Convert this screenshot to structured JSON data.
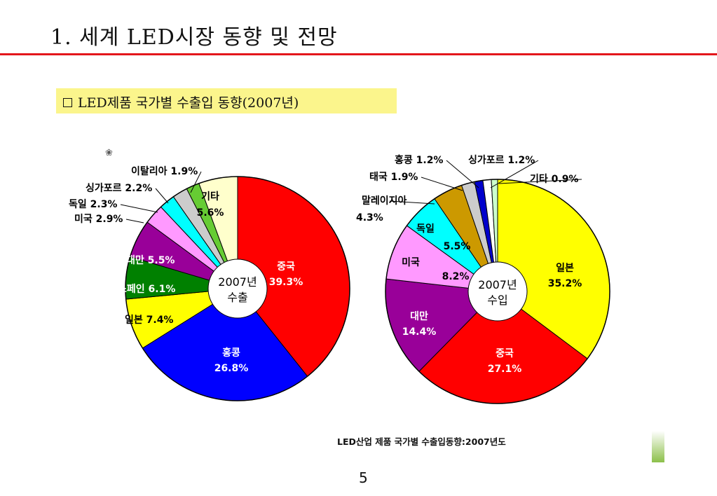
{
  "slide": {
    "title": "1. 세계 LED시장 동향 및 전망",
    "subtitle": "LED제품 국가별 수출입 동향(2007년)",
    "caption": "LED산업 제품 국가별 수출입동향:2007년도",
    "page_number": "5",
    "accent_color": "#e3161b",
    "highlight_color": "#fbf58c"
  },
  "chart_data": [
    {
      "type": "pie",
      "center_label": [
        "2007년",
        "수출"
      ],
      "slices": [
        {
          "name": "중국",
          "value": 39.3,
          "label": "39.3%",
          "color": "#ff0000"
        },
        {
          "name": "홍콩",
          "value": 26.8,
          "label": "26.8%",
          "color": "#0000ff"
        },
        {
          "name": "일본",
          "value": 7.4,
          "label": "7.4%",
          "color": "#ffff00"
        },
        {
          "name": "스페인",
          "value": 6.1,
          "label": "6.1%",
          "color": "#008000"
        },
        {
          "name": "대만",
          "value": 5.5,
          "label": "5.5%",
          "color": "#990099"
        },
        {
          "name": "미국",
          "value": 2.9,
          "label": "2.9%",
          "color": "#ff99ff"
        },
        {
          "name": "독일",
          "value": 2.3,
          "label": "2.3%",
          "color": "#00ffff"
        },
        {
          "name": "싱가포르",
          "value": 2.2,
          "label": "2.2%",
          "color": "#cccccc"
        },
        {
          "name": "이탈리아",
          "value": 1.9,
          "label": "1.9%",
          "color": "#66cc33"
        },
        {
          "name": "기타",
          "value": 5.6,
          "label": "5.6%",
          "color": "#ffffcc"
        }
      ]
    },
    {
      "type": "pie",
      "center_label": [
        "2007년",
        "수입"
      ],
      "slices": [
        {
          "name": "일본",
          "value": 35.2,
          "label": "35.2%",
          "color": "#ffff00"
        },
        {
          "name": "중국",
          "value": 27.1,
          "label": "27.1%",
          "color": "#ff0000"
        },
        {
          "name": "대만",
          "value": 14.4,
          "label": "14.4%",
          "color": "#990099"
        },
        {
          "name": "미국",
          "value": 8.2,
          "label": "8.2%",
          "color": "#ff99ff"
        },
        {
          "name": "독일",
          "value": 5.5,
          "label": "5.5%",
          "color": "#00ffff"
        },
        {
          "name": "말레이지아",
          "value": 4.3,
          "label": "4.3%",
          "color": "#cc9900"
        },
        {
          "name": "태국",
          "value": 1.9,
          "label": "1.9%",
          "color": "#cccccc"
        },
        {
          "name": "홍콩",
          "value": 1.2,
          "label": "1.2%",
          "color": "#0000cc"
        },
        {
          "name": "싱가포르",
          "value": 1.2,
          "label": "1.2%",
          "color": "#ffffff"
        },
        {
          "name": "기타",
          "value": 0.9,
          "label": "0.9%",
          "color": "#ccffcc"
        }
      ]
    }
  ]
}
